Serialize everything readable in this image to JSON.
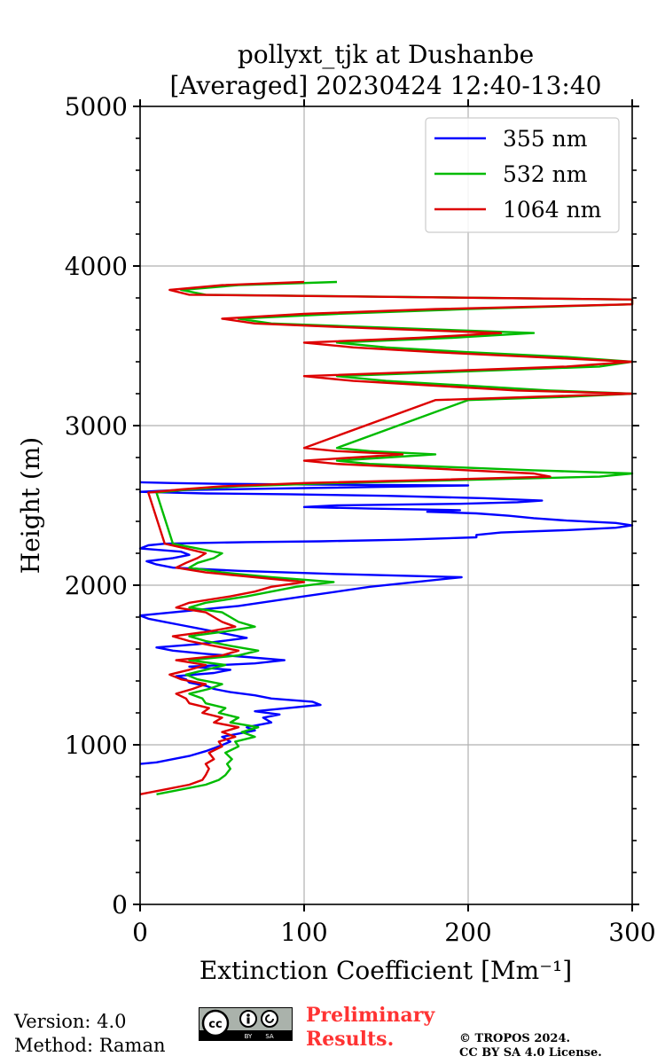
{
  "chart_data": {
    "type": "line",
    "title": "pollyxt_tjk at Dushanbe",
    "subtitle": "[Averaged] 20230424 12:40-13:40",
    "xlabel": "Extinction Coefficient [Mm⁻¹]",
    "ylabel": "Height (m)",
    "xlim": [
      0,
      300
    ],
    "ylim": [
      0,
      5000
    ],
    "x_ticks": [
      0,
      100,
      200,
      300
    ],
    "y_ticks": [
      0,
      1000,
      2000,
      3000,
      4000,
      5000
    ],
    "x_tick_labels": [
      "0",
      "100",
      "200",
      "300"
    ],
    "y_tick_labels": [
      "0",
      "1000",
      "2000",
      "3000",
      "4000",
      "5000"
    ],
    "grid": true,
    "legend_position": "top-right",
    "series": [
      {
        "name": "355 nm",
        "color": "#0000ff",
        "x": [
          0,
          10,
          20,
          30,
          40,
          48,
          55,
          50,
          60,
          70,
          65,
          80,
          75,
          85,
          70,
          90,
          110,
          105,
          80,
          70,
          55,
          45,
          40,
          30,
          28,
          22,
          45,
          55,
          30,
          70,
          88,
          65,
          40,
          20,
          10,
          35,
          50,
          65,
          55,
          45,
          35,
          25,
          15,
          5,
          0,
          60,
          100,
          140,
          196,
          120,
          60,
          20,
          10,
          4,
          20,
          30,
          25,
          0,
          5,
          15,
          65,
          110,
          160,
          205,
          205,
          220,
          260,
          290,
          300,
          290,
          260,
          240,
          225,
          205,
          175,
          195,
          140,
          100,
          120,
          195,
          230,
          245,
          210,
          150,
          90,
          40,
          0,
          20,
          80,
          140,
          200,
          110,
          50,
          20,
          0
        ],
        "y": [
          880,
          890,
          910,
          930,
          960,
          990,
          1020,
          1050,
          1070,
          1090,
          1110,
          1140,
          1170,
          1190,
          1210,
          1230,
          1250,
          1270,
          1290,
          1310,
          1330,
          1350,
          1370,
          1390,
          1410,
          1430,
          1450,
          1470,
          1490,
          1510,
          1530,
          1550,
          1570,
          1590,
          1610,
          1630,
          1650,
          1670,
          1690,
          1710,
          1730,
          1750,
          1770,
          1790,
          1810,
          1870,
          1930,
          1990,
          2050,
          2070,
          2090,
          2110,
          2130,
          2150,
          2170,
          2190,
          2210,
          2230,
          2250,
          2260,
          2270,
          2275,
          2285,
          2300,
          2315,
          2330,
          2345,
          2360,
          2375,
          2390,
          2405,
          2420,
          2435,
          2450,
          2460,
          2470,
          2480,
          2490,
          2500,
          2510,
          2520,
          2530,
          2545,
          2560,
          2570,
          2575,
          2585,
          2595,
          2605,
          2615,
          2625,
          2630,
          2635,
          2640,
          2645
        ]
      },
      {
        "name": "532 nm",
        "color": "#00bb00",
        "x": [
          10,
          25,
          40,
          48,
          52,
          55,
          53,
          56,
          52,
          60,
          58,
          70,
          62,
          72,
          55,
          60,
          48,
          52,
          40,
          38,
          30,
          42,
          50,
          35,
          28,
          40,
          52,
          30,
          60,
          72,
          55,
          40,
          30,
          52,
          70,
          60,
          55,
          50,
          30,
          40,
          65,
          80,
          95,
          118,
          80,
          50,
          30,
          35,
          45,
          50,
          35,
          20,
          10,
          30,
          60,
          120,
          200,
          280,
          300,
          240,
          190,
          140,
          120,
          150,
          180,
          140,
          120,
          200,
          260,
          300,
          250,
          200,
          150,
          120,
          200,
          280,
          300,
          260,
          200,
          150,
          120,
          190,
          240,
          160,
          80,
          60,
          120,
          200,
          300,
          300,
          40,
          25,
          60,
          120
        ],
        "y": [
          690,
          720,
          750,
          780,
          810,
          850,
          880,
          910,
          950,
          990,
          1020,
          1050,
          1080,
          1110,
          1140,
          1170,
          1200,
          1230,
          1260,
          1290,
          1320,
          1350,
          1380,
          1410,
          1440,
          1470,
          1500,
          1530,
          1560,
          1590,
          1620,
          1650,
          1680,
          1710,
          1740,
          1770,
          1800,
          1830,
          1860,
          1890,
          1930,
          1960,
          1990,
          2020,
          2050,
          2080,
          2110,
          2140,
          2170,
          2200,
          2230,
          2260,
          2580,
          2600,
          2620,
          2640,
          2660,
          2680,
          2700,
          2720,
          2740,
          2760,
          2780,
          2800,
          2820,
          2840,
          2860,
          3160,
          3180,
          3200,
          3220,
          3250,
          3280,
          3310,
          3340,
          3370,
          3400,
          3430,
          3460,
          3490,
          3520,
          3550,
          3580,
          3610,
          3640,
          3670,
          3700,
          3730,
          3760,
          3790,
          3820,
          3850,
          3880,
          3900
        ]
      },
      {
        "name": "1064 nm",
        "color": "#dd0000",
        "x": [
          0,
          15,
          30,
          38,
          40,
          42,
          40,
          45,
          42,
          50,
          48,
          58,
          50,
          60,
          45,
          50,
          38,
          42,
          30,
          28,
          22,
          32,
          40,
          25,
          18,
          30,
          40,
          22,
          50,
          60,
          45,
          30,
          20,
          42,
          58,
          50,
          45,
          40,
          22,
          30,
          55,
          70,
          80,
          100,
          70,
          40,
          22,
          28,
          35,
          40,
          28,
          15,
          5,
          25,
          50,
          100,
          180,
          250,
          240,
          200,
          160,
          120,
          100,
          130,
          160,
          120,
          100,
          180,
          240,
          300,
          230,
          180,
          130,
          100,
          180,
          260,
          300,
          240,
          180,
          130,
          100,
          170,
          220,
          140,
          70,
          50,
          100,
          180,
          300,
          300,
          30,
          18,
          50,
          100
        ],
        "y": [
          690,
          720,
          750,
          780,
          810,
          850,
          880,
          910,
          950,
          990,
          1020,
          1050,
          1080,
          1110,
          1140,
          1170,
          1200,
          1230,
          1260,
          1290,
          1320,
          1350,
          1380,
          1410,
          1440,
          1470,
          1500,
          1530,
          1560,
          1590,
          1620,
          1650,
          1680,
          1710,
          1740,
          1770,
          1800,
          1830,
          1860,
          1890,
          1930,
          1960,
          1990,
          2020,
          2050,
          2080,
          2110,
          2140,
          2170,
          2200,
          2230,
          2260,
          2580,
          2600,
          2620,
          2640,
          2660,
          2680,
          2700,
          2720,
          2740,
          2760,
          2780,
          2800,
          2820,
          2840,
          2860,
          3160,
          3180,
          3200,
          3220,
          3250,
          3280,
          3310,
          3340,
          3370,
          3400,
          3430,
          3460,
          3490,
          3520,
          3550,
          3580,
          3610,
          3640,
          3670,
          3700,
          3730,
          3760,
          3790,
          3820,
          3850,
          3880,
          3900
        ]
      }
    ]
  },
  "footer": {
    "version": "Version: 4.0",
    "method": "Method: Raman",
    "preliminary_line1": "Preliminary",
    "preliminary_line2": "Results.",
    "copyright_line1": "© TROPOS 2024.",
    "copyright_line2": "CC BY SA 4.0 License.",
    "license_badge": "cc-by-sa-icon"
  }
}
